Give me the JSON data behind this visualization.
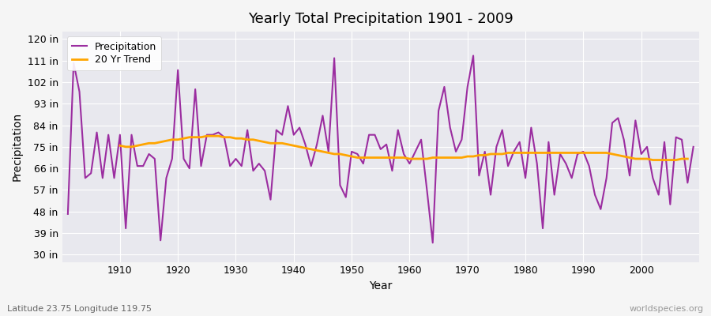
{
  "title": "Yearly Total Precipitation 1901 - 2009",
  "xlabel": "Year",
  "ylabel": "Precipitation",
  "subtitle": "Latitude 23.75 Longitude 119.75",
  "watermark": "worldspecies.org",
  "years": [
    1901,
    1902,
    1903,
    1904,
    1905,
    1906,
    1907,
    1908,
    1909,
    1910,
    1911,
    1912,
    1913,
    1914,
    1915,
    1916,
    1917,
    1918,
    1919,
    1920,
    1921,
    1922,
    1923,
    1924,
    1925,
    1926,
    1927,
    1928,
    1929,
    1930,
    1931,
    1932,
    1933,
    1934,
    1935,
    1936,
    1937,
    1938,
    1939,
    1940,
    1941,
    1942,
    1943,
    1944,
    1945,
    1946,
    1947,
    1948,
    1949,
    1950,
    1951,
    1952,
    1953,
    1954,
    1955,
    1956,
    1957,
    1958,
    1959,
    1960,
    1961,
    1962,
    1963,
    1964,
    1965,
    1966,
    1967,
    1968,
    1969,
    1970,
    1971,
    1972,
    1973,
    1974,
    1975,
    1976,
    1977,
    1978,
    1979,
    1980,
    1981,
    1982,
    1983,
    1984,
    1985,
    1986,
    1987,
    1988,
    1989,
    1990,
    1991,
    1992,
    1993,
    1994,
    1995,
    1996,
    1997,
    1998,
    1999,
    2000,
    2001,
    2002,
    2003,
    2004,
    2005,
    2006,
    2007,
    2008,
    2009
  ],
  "precip": [
    47,
    110,
    98,
    62,
    64,
    81,
    62,
    80,
    62,
    80,
    41,
    80,
    67,
    67,
    72,
    70,
    36,
    62,
    70,
    107,
    70,
    66,
    99,
    67,
    80,
    80,
    81,
    79,
    67,
    70,
    67,
    82,
    65,
    68,
    65,
    53,
    82,
    80,
    92,
    80,
    83,
    76,
    67,
    76,
    88,
    73,
    112,
    59,
    54,
    73,
    72,
    68,
    80,
    80,
    74,
    76,
    65,
    82,
    72,
    68,
    73,
    78,
    57,
    35,
    90,
    100,
    83,
    73,
    78,
    100,
    113,
    63,
    73,
    55,
    75,
    82,
    67,
    73,
    77,
    62,
    83,
    68,
    41,
    77,
    55,
    72,
    68,
    62,
    72,
    73,
    67,
    55,
    49,
    62,
    85,
    87,
    78,
    63,
    86,
    72,
    75,
    62,
    55,
    77,
    51,
    79,
    78,
    60,
    75
  ],
  "trend_years": [
    1910,
    1911,
    1912,
    1913,
    1914,
    1915,
    1916,
    1917,
    1918,
    1919,
    1920,
    1921,
    1922,
    1923,
    1924,
    1925,
    1926,
    1927,
    1928,
    1929,
    1930,
    1931,
    1932,
    1933,
    1934,
    1935,
    1936,
    1937,
    1938,
    1939,
    1940,
    1941,
    1942,
    1943,
    1944,
    1945,
    1946,
    1947,
    1948,
    1949,
    1950,
    1951,
    1952,
    1953,
    1954,
    1955,
    1956,
    1957,
    1958,
    1959,
    1960,
    1961,
    1962,
    1963,
    1964,
    1965,
    1966,
    1967,
    1968,
    1969,
    1970,
    1971,
    1972,
    1973,
    1974,
    1975,
    1976,
    1977,
    1978,
    1979,
    1980,
    1981,
    1982,
    1983,
    1984,
    1985,
    1986,
    1987,
    1988,
    1989,
    1990,
    1991,
    1992,
    1993,
    1994,
    1995,
    1996,
    1997,
    1998,
    1999,
    2000,
    2001,
    2002,
    2003,
    2004,
    2005,
    2006,
    2007,
    2008
  ],
  "trend": [
    75.5,
    75.0,
    75.0,
    75.5,
    76.0,
    76.5,
    76.5,
    77.0,
    77.5,
    78.0,
    78.0,
    78.5,
    79.0,
    79.0,
    79.0,
    79.5,
    79.5,
    79.5,
    79.0,
    79.0,
    78.5,
    78.5,
    78.0,
    78.0,
    77.5,
    77.0,
    76.5,
    76.5,
    76.5,
    76.0,
    75.5,
    75.0,
    74.5,
    74.0,
    73.5,
    73.0,
    72.5,
    72.0,
    72.0,
    71.5,
    71.0,
    70.5,
    70.5,
    70.5,
    70.5,
    70.5,
    70.5,
    70.5,
    70.5,
    70.5,
    70.0,
    70.0,
    70.0,
    70.0,
    70.5,
    70.5,
    70.5,
    70.5,
    70.5,
    70.5,
    71.0,
    71.0,
    71.5,
    71.5,
    72.0,
    72.0,
    72.0,
    72.5,
    72.5,
    72.5,
    72.5,
    72.5,
    72.5,
    72.5,
    72.5,
    72.5,
    72.5,
    72.5,
    72.5,
    72.5,
    72.5,
    72.5,
    72.5,
    72.5,
    72.5,
    72.0,
    71.5,
    71.0,
    70.5,
    70.0,
    70.0,
    70.0,
    69.5,
    69.5,
    69.5,
    69.5,
    69.5,
    70.0,
    70.0
  ],
  "precip_color": "#9B2DA0",
  "trend_color": "#FFA500",
  "bg_color": "#E8E8EE",
  "plot_bg_color": "#E8E8EE",
  "grid_color": "#FFFFFF",
  "yticks": [
    30,
    39,
    48,
    57,
    66,
    75,
    84,
    93,
    102,
    111,
    120
  ],
  "xticks": [
    1910,
    1920,
    1930,
    1940,
    1950,
    1960,
    1970,
    1980,
    1990,
    2000
  ],
  "ylim": [
    27,
    123
  ],
  "xlim": [
    1900,
    2010
  ]
}
